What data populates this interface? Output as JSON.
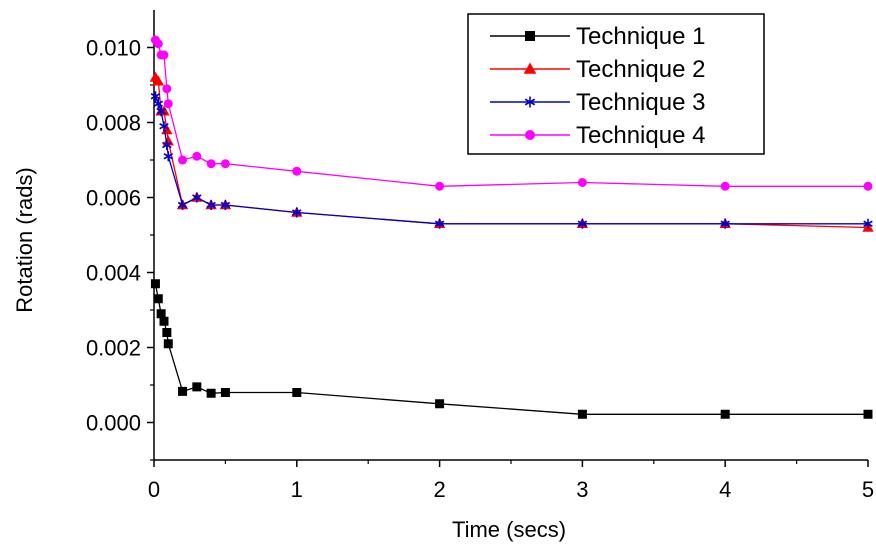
{
  "chart_data": {
    "type": "line",
    "xlabel": "Time (secs)",
    "ylabel": "Rotation (rads)",
    "xlim": [
      0,
      5
    ],
    "ylim": [
      -0.001,
      0.011
    ],
    "x_ticks": [
      0,
      1,
      2,
      3,
      4,
      5
    ],
    "x_tick_labels": [
      "0",
      "1",
      "2",
      "3",
      "4",
      "5"
    ],
    "y_ticks": [
      0,
      0.002,
      0.004,
      0.006,
      0.008,
      0.01
    ],
    "y_tick_labels": [
      "0.000",
      "0.002",
      "0.004",
      "0.006",
      "0.008",
      "0.010"
    ],
    "grid": false,
    "legend_position": "top-right",
    "x": [
      0.01,
      0.03,
      0.05,
      0.07,
      0.09,
      0.1,
      0.2,
      0.3,
      0.4,
      0.5,
      1,
      2,
      3,
      4,
      5
    ],
    "series": [
      {
        "name": "Technique 1",
        "color": "#000000",
        "marker": "square",
        "values": [
          0.0037,
          0.0033,
          0.0029,
          0.0027,
          0.0024,
          0.0021,
          0.00083,
          0.00095,
          0.00078,
          0.0008,
          0.0008,
          0.0005,
          0.00022,
          0.00022,
          0.00022
        ]
      },
      {
        "name": "Technique 2",
        "color": "#ff0000",
        "marker": "triangle",
        "values": [
          0.0092,
          0.0091,
          0.0083,
          0.0083,
          0.0078,
          0.0075,
          0.0058,
          0.006,
          0.0058,
          0.0058,
          0.0056,
          0.0053,
          0.0053,
          0.0053,
          0.0052
        ]
      },
      {
        "name": "Technique 3",
        "color": "#0000cc",
        "marker": "star",
        "values": [
          0.0087,
          0.0085,
          0.0083,
          0.0079,
          0.0074,
          0.0071,
          0.0058,
          0.006,
          0.0058,
          0.0058,
          0.0056,
          0.0053,
          0.0053,
          0.0053,
          0.0053
        ]
      },
      {
        "name": "Technique 4",
        "color": "#ff00ff",
        "marker": "circle",
        "values": [
          0.0102,
          0.0101,
          0.0098,
          0.0098,
          0.0089,
          0.0085,
          0.007,
          0.0071,
          0.0069,
          0.0069,
          0.0067,
          0.0063,
          0.0064,
          0.0063,
          0.0063
        ]
      }
    ]
  }
}
